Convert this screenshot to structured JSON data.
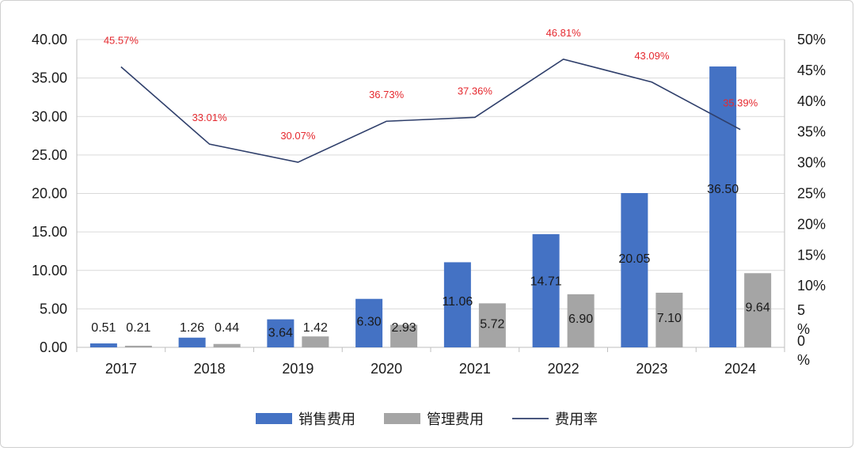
{
  "chart_data": {
    "type": "bar",
    "categories": [
      "2017",
      "2018",
      "2019",
      "2020",
      "2021",
      "2022",
      "2023",
      "2024"
    ],
    "series": [
      {
        "name": "销售费用",
        "type": "bar",
        "axis": "left",
        "color": "#4472c4",
        "values": [
          0.51,
          1.26,
          3.64,
          6.3,
          11.06,
          14.71,
          20.05,
          36.5
        ],
        "labels": [
          "0.51",
          "1.26",
          "3.64",
          "6.30",
          "11.06",
          "14.71",
          "20.05",
          "36.50"
        ]
      },
      {
        "name": "管理费用",
        "type": "bar",
        "axis": "left",
        "color": "#a5a5a5",
        "values": [
          0.21,
          0.44,
          1.42,
          2.93,
          5.72,
          6.9,
          7.1,
          9.64
        ],
        "labels": [
          "0.21",
          "0.44",
          "1.42",
          "2.93",
          "5.72",
          "6.90",
          "7.10",
          "9.64"
        ]
      },
      {
        "name": "费用率",
        "type": "line",
        "axis": "right",
        "color": "#2f3f6b",
        "label_color": "#e5292f",
        "values": [
          45.57,
          33.01,
          30.07,
          36.73,
          37.36,
          46.81,
          43.09,
          35.39
        ],
        "labels": [
          "45.57%",
          "33.01%",
          "30.07%",
          "36.73%",
          "37.36%",
          "46.81%",
          "43.09%",
          "35.39%"
        ]
      }
    ],
    "left_axis": {
      "ylim": [
        0,
        40
      ],
      "ticks": [
        "0.00",
        "5.00",
        "10.00",
        "15.00",
        "20.00",
        "25.00",
        "30.00",
        "35.00",
        "40.00"
      ]
    },
    "right_axis": {
      "ylim": [
        0,
        50
      ],
      "ticks": [
        "0%",
        "5%",
        "10%",
        "15%",
        "20%",
        "25%",
        "30%",
        "35%",
        "40%",
        "45%",
        "50%"
      ]
    },
    "grid": true,
    "legend_position": "bottom"
  }
}
